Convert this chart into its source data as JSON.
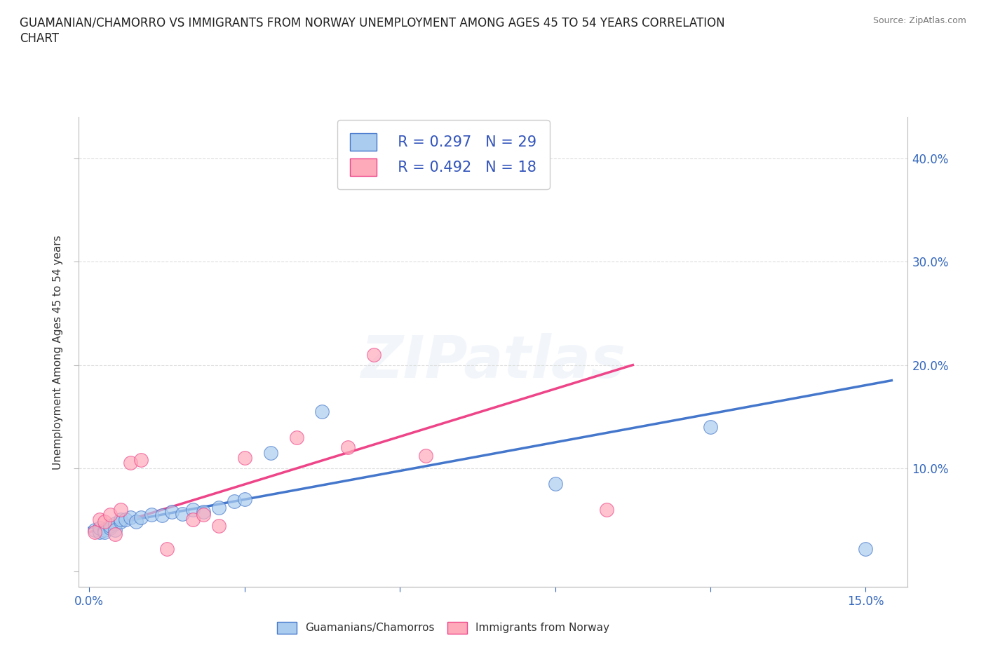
{
  "title_line1": "GUAMANIAN/CHAMORRO VS IMMIGRANTS FROM NORWAY UNEMPLOYMENT AMONG AGES 45 TO 54 YEARS CORRELATION",
  "title_line2": "CHART",
  "source": "Source: ZipAtlas.com",
  "xlabel_ticks": [
    0.0,
    0.03,
    0.06,
    0.09,
    0.12,
    0.15
  ],
  "xlabel_labels": [
    "0.0%",
    "",
    "",
    "",
    "",
    "15.0%"
  ],
  "ylabel_ticks": [
    0.0,
    0.1,
    0.2,
    0.3,
    0.4
  ],
  "right_ylabel_labels": [
    "",
    "10.0%",
    "20.0%",
    "30.0%",
    "40.0%"
  ],
  "xlim": [
    -0.002,
    0.158
  ],
  "ylim": [
    -0.015,
    0.44
  ],
  "watermark": "ZIPatlas",
  "blue_scatter": [
    [
      0.001,
      0.04
    ],
    [
      0.002,
      0.038
    ],
    [
      0.002,
      0.042
    ],
    [
      0.003,
      0.04
    ],
    [
      0.003,
      0.038
    ],
    [
      0.004,
      0.042
    ],
    [
      0.004,
      0.044
    ],
    [
      0.005,
      0.046
    ],
    [
      0.005,
      0.04
    ],
    [
      0.006,
      0.048
    ],
    [
      0.006,
      0.05
    ],
    [
      0.007,
      0.05
    ],
    [
      0.008,
      0.052
    ],
    [
      0.009,
      0.048
    ],
    [
      0.01,
      0.052
    ],
    [
      0.012,
      0.055
    ],
    [
      0.014,
      0.054
    ],
    [
      0.016,
      0.058
    ],
    [
      0.018,
      0.056
    ],
    [
      0.02,
      0.06
    ],
    [
      0.022,
      0.058
    ],
    [
      0.025,
      0.062
    ],
    [
      0.028,
      0.068
    ],
    [
      0.03,
      0.07
    ],
    [
      0.035,
      0.115
    ],
    [
      0.045,
      0.155
    ],
    [
      0.09,
      0.085
    ],
    [
      0.12,
      0.14
    ],
    [
      0.15,
      0.022
    ]
  ],
  "pink_scatter": [
    [
      0.001,
      0.038
    ],
    [
      0.002,
      0.05
    ],
    [
      0.003,
      0.048
    ],
    [
      0.004,
      0.055
    ],
    [
      0.005,
      0.036
    ],
    [
      0.006,
      0.06
    ],
    [
      0.008,
      0.105
    ],
    [
      0.01,
      0.108
    ],
    [
      0.015,
      0.022
    ],
    [
      0.02,
      0.05
    ],
    [
      0.022,
      0.055
    ],
    [
      0.025,
      0.044
    ],
    [
      0.03,
      0.11
    ],
    [
      0.04,
      0.13
    ],
    [
      0.05,
      0.12
    ],
    [
      0.055,
      0.21
    ],
    [
      0.065,
      0.112
    ],
    [
      0.1,
      0.06
    ]
  ],
  "blue_line_x": [
    0.0,
    0.155
  ],
  "blue_line_y": [
    0.042,
    0.185
  ],
  "pink_line_x": [
    0.0,
    0.105
  ],
  "pink_line_y": [
    0.038,
    0.2
  ],
  "blue_color": "#AACCEE",
  "pink_color": "#FFAABB",
  "blue_line_color": "#4477CC",
  "pink_line_color": "#EE4488",
  "legend_R_blue": "R = 0.297",
  "legend_N_blue": "N = 29",
  "legend_R_pink": "R = 0.492",
  "legend_N_pink": "N = 18",
  "ylabel": "Unemployment Among Ages 45 to 54 years",
  "label_blue": "Guamanians/Chamorros",
  "label_pink": "Immigrants from Norway",
  "grid_color": "#DDDDDD",
  "background_color": "#FFFFFF"
}
